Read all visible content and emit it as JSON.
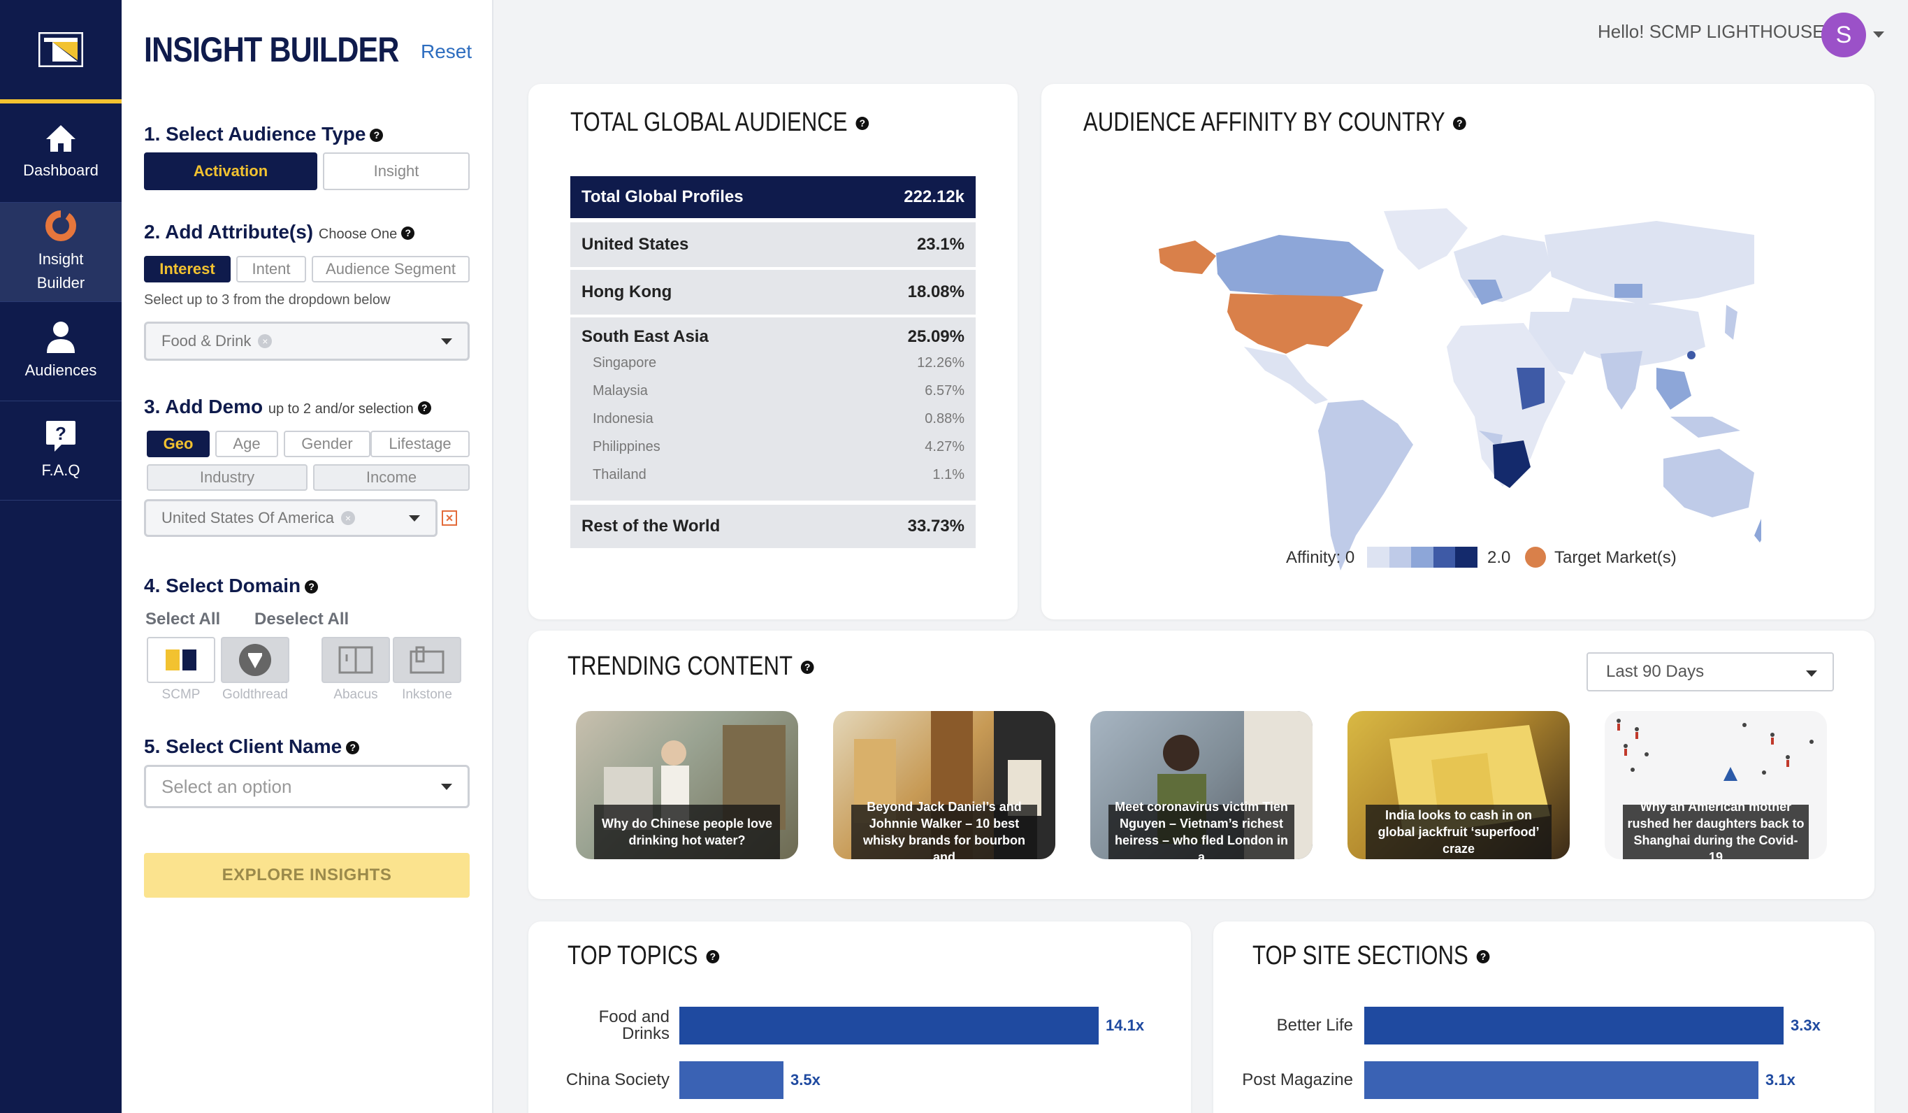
{
  "nav": {
    "items": [
      {
        "label": "Dashboard",
        "icon": "home-icon"
      },
      {
        "label": "Insight Builder",
        "icon": "insight-icon"
      },
      {
        "label": "Audiences",
        "icon": "user-icon"
      },
      {
        "label": "F.A.Q",
        "icon": "faq-icon"
      }
    ]
  },
  "builder": {
    "title": "INSIGHT BUILDER",
    "reset": "Reset",
    "step1": {
      "label": "1. Select Audience Type",
      "options": [
        "Activation",
        "Insight"
      ]
    },
    "step2": {
      "label": "2. Add Attribute(s)",
      "sub": "Choose One",
      "options": [
        "Interest",
        "Intent",
        "Audience Segment"
      ],
      "hint": "Select up to 3 from the dropdown below",
      "selected": "Food & Drink"
    },
    "step3": {
      "label": "3. Add Demo",
      "sub": "up to 2 and/or selection",
      "options": [
        "Geo",
        "Age",
        "Gender",
        "Lifestage",
        "Industry",
        "Income"
      ],
      "selected": "United States Of America"
    },
    "step4": {
      "label": "4. Select Domain",
      "select_all": "Select All",
      "deselect_all": "Deselect All",
      "domains": [
        "SCMP",
        "Goldthread",
        "Abacus",
        "Inkstone"
      ]
    },
    "step5": {
      "label": "5. Select Client Name",
      "placeholder": "Select an option"
    },
    "explore": "EXPLORE INSIGHTS"
  },
  "header": {
    "greeting": "Hello! SCMP LIGHTHOUSE",
    "avatar_letter": "S"
  },
  "global_audience": {
    "title": "TOTAL GLOBAL AUDIENCE",
    "total_label": "Total Global Profiles",
    "total_value": "222.12k",
    "rows": [
      {
        "label": "United States",
        "value": "23.1%"
      },
      {
        "label": "Hong Kong",
        "value": "18.08%"
      },
      {
        "label": "South East Asia",
        "value": "25.09%"
      }
    ],
    "sea": [
      {
        "label": "Singapore",
        "value": "12.26%"
      },
      {
        "label": "Malaysia",
        "value": "6.57%"
      },
      {
        "label": "Indonesia",
        "value": "0.88%"
      },
      {
        "label": "Philippines",
        "value": "4.27%"
      },
      {
        "label": "Thailand",
        "value": "1.1%"
      }
    ],
    "rest": {
      "label": "Rest of the World",
      "value": "33.73%"
    }
  },
  "affinity": {
    "title": "AUDIENCE AFFINITY BY COUNTRY",
    "legend_min": "Affinity: 0",
    "legend_max": "2.0",
    "legend_target": "Target Market(s)",
    "colors": {
      "target": "#d9804a",
      "scale": [
        "#dde3f2",
        "#bfcbe8",
        "#8da6d8",
        "#3e5aa6",
        "#142a6c"
      ]
    }
  },
  "trending": {
    "title": "TRENDING CONTENT",
    "period": "Last 90 Days",
    "items": [
      "Why do Chinese people love drinking hot water?",
      "Beyond Jack Daniel’s and Johnnie Walker – 10 best whisky brands for bourbon and",
      "Meet coronavirus victim Tien Nguyen – Vietnam’s richest heiress – who fled London in a",
      "India looks to cash in on global jackfruit ‘superfood’ craze",
      "Why an American mother rushed her daughters back to Shanghai during the Covid-19"
    ]
  },
  "top_topics": {
    "title": "TOP TOPICS",
    "chart_data": {
      "type": "bar",
      "categories": [
        "Food and Drinks",
        "China Society"
      ],
      "values": [
        14.1,
        3.5
      ],
      "labels": [
        "14.1x",
        "3.5x"
      ]
    }
  },
  "top_sections": {
    "title": "TOP SITE SECTIONS",
    "chart_data": {
      "type": "bar",
      "categories": [
        "Better Life",
        "Post Magazine"
      ],
      "values": [
        3.3,
        3.1
      ],
      "labels": [
        "3.3x",
        "3.1x"
      ]
    }
  }
}
